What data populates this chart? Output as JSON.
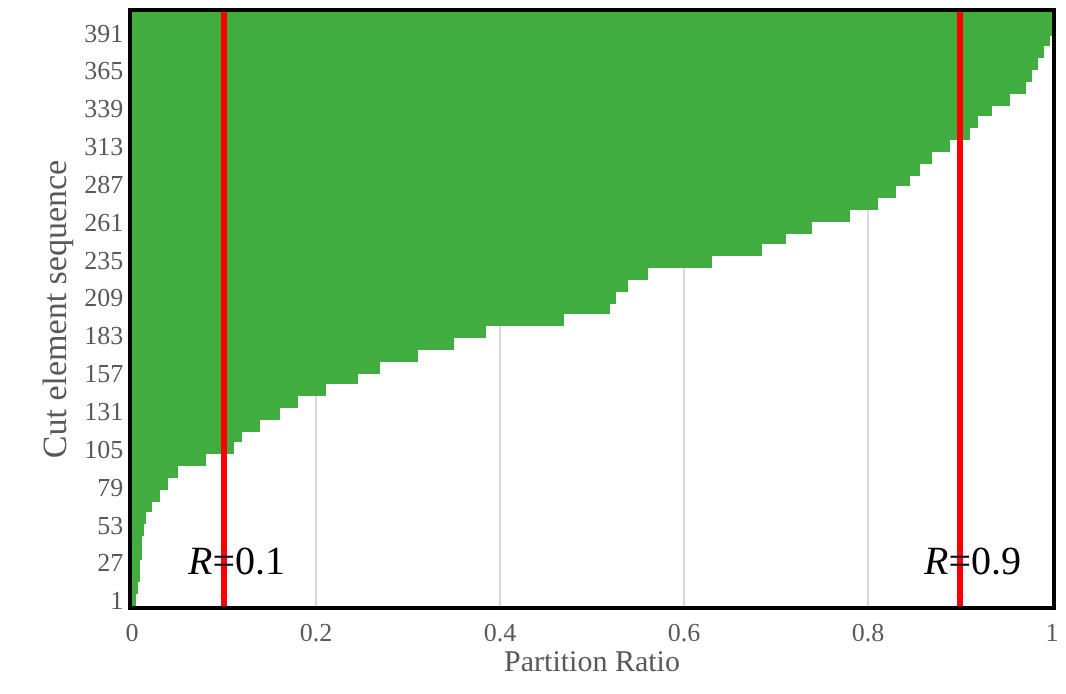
{
  "chart_data": {
    "type": "bar",
    "orientation": "horizontal",
    "xlabel": "Partition Ratio",
    "ylabel": "Cut element sequence",
    "x": [
      1,
      9,
      17,
      25,
      33,
      41,
      49,
      57,
      65,
      73,
      81,
      89,
      97,
      105,
      113,
      121,
      129,
      137,
      145,
      153,
      161,
      169,
      177,
      185,
      193,
      201,
      209,
      217,
      225,
      233,
      241,
      249,
      257,
      265,
      273,
      281,
      289,
      297,
      305,
      313,
      321,
      329,
      337,
      345,
      353,
      361,
      369,
      377,
      385,
      393,
      401
    ],
    "values": [
      0.005,
      0.007,
      0.008,
      0.009,
      0.01,
      0.01,
      0.012,
      0.016,
      0.022,
      0.031,
      0.04,
      0.05,
      0.08,
      0.11,
      0.12,
      0.14,
      0.16,
      0.18,
      0.21,
      0.245,
      0.27,
      0.31,
      0.35,
      0.385,
      0.47,
      0.52,
      0.525,
      0.54,
      0.56,
      0.63,
      0.685,
      0.71,
      0.74,
      0.78,
      0.81,
      0.83,
      0.845,
      0.857,
      0.87,
      0.89,
      0.91,
      0.92,
      0.935,
      0.955,
      0.972,
      0.978,
      0.985,
      0.992,
      0.997,
      0.999,
      1.0
    ],
    "color": "#41ac3f",
    "xlim": [
      0,
      1
    ],
    "xticks": [
      0,
      0.2,
      0.4,
      0.6,
      0.8,
      1
    ],
    "ylim": [
      -3,
      405
    ],
    "yticks": [
      1,
      27,
      53,
      79,
      105,
      131,
      157,
      183,
      209,
      235,
      261,
      287,
      313,
      339,
      365,
      391
    ],
    "grid": "x",
    "ref_lines": [
      {
        "axis": "x",
        "value": 0.1,
        "label": "R=0.1",
        "color": "#ff0000"
      },
      {
        "axis": "x",
        "value": 0.9,
        "label": "R=0.9",
        "color": "#ff0000"
      }
    ]
  }
}
